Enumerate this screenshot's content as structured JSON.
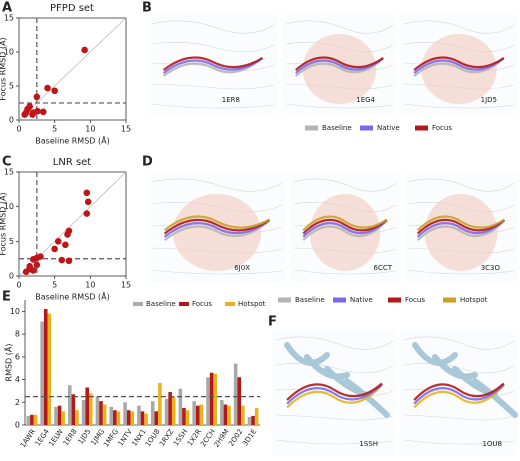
{
  "chart_data": [
    {
      "type": "scatter",
      "panel": "A",
      "title": "PFPD set",
      "xlabel": "Baseline RMSD (Å)",
      "ylabel": "Focus RMSD (Å)",
      "x": [
        9.2,
        4.0,
        5.0,
        2.5,
        1.2,
        1.5,
        1.0,
        2.0,
        2.6,
        3.4,
        0.8,
        1.9
      ],
      "values": [
        10.3,
        4.7,
        4.3,
        3.4,
        1.6,
        2.0,
        1.1,
        1.1,
        1.3,
        1.2,
        0.8,
        0.8
      ],
      "color": "#c0141b",
      "xlim": [
        0,
        15
      ],
      "ylim": [
        0,
        15
      ],
      "xticks": [
        0,
        5,
        10,
        15
      ],
      "yticks": [
        0,
        5,
        10,
        15
      ],
      "vline": 2.5,
      "hline": 2.5,
      "diagonal": true
    },
    {
      "type": "scatter",
      "panel": "C",
      "title": "LNR set",
      "xlabel": "Baseline RMSD (Å)",
      "ylabel": "Focus RMSD (Å)",
      "x": [
        9.5,
        9.7,
        9.5,
        7.0,
        6.8,
        5.5,
        6.5,
        5.0,
        6.0,
        7.0,
        3.0,
        2.0,
        2.5,
        1.5,
        1.0,
        2.0,
        2.5,
        1.5
      ],
      "values": [
        12.0,
        10.7,
        9.0,
        6.5,
        6.0,
        5.0,
        4.5,
        3.9,
        2.3,
        2.2,
        2.8,
        2.4,
        2.6,
        1.0,
        0.6,
        0.8,
        1.6,
        1.4
      ],
      "color": "#c0141b",
      "xlim": [
        0,
        15
      ],
      "ylim": [
        0,
        15
      ],
      "xticks": [
        0,
        5,
        10,
        15
      ],
      "yticks": [
        0,
        5,
        10,
        15
      ],
      "vline": 2.5,
      "hline": 2.5,
      "diagonal": true
    },
    {
      "type": "bar",
      "panel": "E",
      "ylabel": "RMSD (Å)",
      "categories": [
        "1AWR",
        "1EG4",
        "1ELW",
        "1ER8",
        "1JD5",
        "1JMG",
        "1MFG",
        "1NTV",
        "1NX1",
        "1OU8",
        "1RXZ",
        "1SSH",
        "1X2R",
        "2CCH",
        "2H9M",
        "2O02",
        "3D1E"
      ],
      "series": [
        {
          "name": "Baseline",
          "color": "#a9a9a9",
          "values": [
            0.8,
            9.1,
            1.6,
            3.5,
            2.2,
            2.5,
            1.6,
            2.0,
            1.7,
            2.1,
            2.3,
            3.2,
            2.1,
            4.2,
            2.2,
            5.4,
            0.7
          ]
        },
        {
          "name": "Focus",
          "color": "#b01a1a",
          "values": [
            0.9,
            10.2,
            1.7,
            2.7,
            3.3,
            2.1,
            1.3,
            1.3,
            1.2,
            1.2,
            2.9,
            1.5,
            1.7,
            4.6,
            1.8,
            4.2,
            0.8
          ]
        },
        {
          "name": "Hotspot",
          "color": "#e8b21c",
          "values": [
            0.9,
            9.8,
            1.2,
            1.3,
            2.8,
            1.8,
            1.2,
            1.2,
            1.0,
            3.7,
            2.5,
            1.3,
            1.8,
            4.5,
            1.7,
            1.7,
            1.5
          ]
        }
      ],
      "ylim": [
        0,
        11
      ],
      "yticks": [
        0,
        2,
        4,
        6,
        8,
        10
      ],
      "hline": 2.5
    }
  ],
  "figure": {
    "panels": [
      {
        "letter": "B",
        "labels": [
          "1ER8",
          "1EG4",
          "1JD5"
        ],
        "legend": [
          {
            "name": "Baseline",
            "color": "#b5b5b5"
          },
          {
            "name": "Native",
            "color": "#7b68ee"
          },
          {
            "name": "Focus",
            "color": "#b01a1a"
          }
        ]
      },
      {
        "letter": "D",
        "labels": [
          "6J0X",
          "6CCT",
          "3C3O"
        ],
        "legend": [
          {
            "name": "Baseline",
            "color": "#b5b5b5"
          },
          {
            "name": "Native",
            "color": "#7b68ee"
          },
          {
            "name": "Focus",
            "color": "#b01a1a"
          },
          {
            "name": "Hotspot",
            "color": "#c9a227"
          }
        ]
      },
      {
        "letter": "F",
        "labels": [
          "1SSH",
          "1OU8"
        ]
      }
    ]
  }
}
